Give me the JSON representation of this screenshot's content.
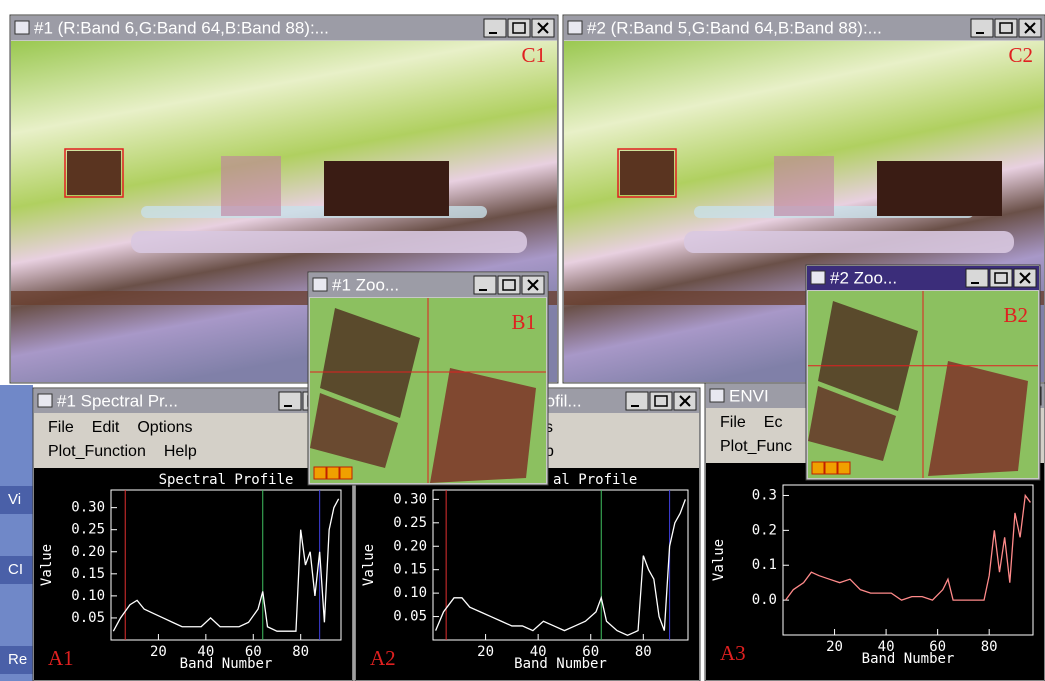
{
  "image_windows": [
    {
      "title": "#1 (R:Band 6,G:Band 64,B:Band 88):...",
      "label": "C1"
    },
    {
      "title": "#2 (R:Band 5,G:Band 64,B:Band 88):...",
      "label": "C2"
    }
  ],
  "zoom_windows": [
    {
      "title": "#1 Zoo...",
      "label": "B1"
    },
    {
      "title": "#2 Zoo...",
      "label": "B2"
    }
  ],
  "left_strip": [
    "Vi",
    "CI",
    "Re"
  ],
  "profiles": [
    {
      "title": "#1 Spectral Pr...",
      "menu_rows": [
        [
          "File",
          "Edit",
          "Options"
        ],
        [
          "Plot_Function",
          "Help"
        ]
      ],
      "plot_title": "Spectral Profile",
      "label": "A1",
      "xlabel": "Band Number",
      "ylabel": "Value",
      "xlim": [
        0,
        97
      ],
      "ylim": [
        0,
        0.34
      ],
      "xticks": [
        20,
        40,
        60,
        80
      ],
      "yticks": [
        {
          "value": 0.05,
          "label": "0.05"
        },
        {
          "value": 0.1,
          "label": "0.10"
        },
        {
          "value": 0.15,
          "label": "0.15"
        },
        {
          "value": 0.2,
          "label": "0.20"
        },
        {
          "value": 0.25,
          "label": "0.25"
        },
        {
          "value": 0.3,
          "label": "0.30"
        }
      ],
      "markers": [
        {
          "band": 6,
          "color": "#e03030"
        },
        {
          "band": 64,
          "color": "#40c060"
        },
        {
          "band": 88,
          "color": "#4040e0"
        }
      ],
      "color": "#ffffff",
      "x": [
        1,
        4,
        8,
        11,
        14,
        18,
        22,
        26,
        30,
        34,
        38,
        42,
        46,
        50,
        54,
        58,
        62,
        64,
        66,
        70,
        74,
        78,
        80,
        82,
        84,
        86,
        88,
        90,
        92,
        94,
        96
      ],
      "values": [
        0.02,
        0.05,
        0.08,
        0.09,
        0.07,
        0.06,
        0.05,
        0.04,
        0.03,
        0.03,
        0.03,
        0.05,
        0.03,
        0.03,
        0.03,
        0.04,
        0.07,
        0.11,
        0.03,
        0.02,
        0.02,
        0.02,
        0.25,
        0.17,
        0.2,
        0.1,
        0.2,
        0.04,
        0.25,
        0.3,
        0.32
      ]
    },
    {
      "title": "rofil...",
      "menu_rows": [
        [
          "s"
        ],
        [
          "p"
        ]
      ],
      "plot_title": "al Profile",
      "label": "A2",
      "xlabel": "Band Number",
      "ylabel": "Value",
      "xlim": [
        0,
        97
      ],
      "ylim": [
        0,
        0.32
      ],
      "xticks": [
        20,
        40,
        60,
        80
      ],
      "yticks": [
        {
          "value": 0.05,
          "label": "0.05"
        },
        {
          "value": 0.1,
          "label": "0.10"
        },
        {
          "value": 0.15,
          "label": "0.15"
        },
        {
          "value": 0.2,
          "label": "0.20"
        },
        {
          "value": 0.25,
          "label": "0.25"
        },
        {
          "value": 0.3,
          "label": "0.30"
        }
      ],
      "markers": [
        {
          "band": 5,
          "color": "#e03030"
        },
        {
          "band": 64,
          "color": "#40c060"
        },
        {
          "band": 90,
          "color": "#4040e0"
        }
      ],
      "color": "#ffffff",
      "x": [
        1,
        4,
        8,
        11,
        14,
        18,
        22,
        26,
        30,
        34,
        38,
        42,
        46,
        50,
        54,
        58,
        62,
        64,
        66,
        70,
        74,
        78,
        80,
        82,
        84,
        86,
        88,
        90,
        92,
        94,
        96
      ],
      "values": [
        0.02,
        0.06,
        0.09,
        0.09,
        0.07,
        0.06,
        0.05,
        0.04,
        0.03,
        0.03,
        0.02,
        0.04,
        0.03,
        0.02,
        0.03,
        0.04,
        0.06,
        0.09,
        0.04,
        0.02,
        0.01,
        0.02,
        0.18,
        0.15,
        0.13,
        0.05,
        0.02,
        0.2,
        0.25,
        0.27,
        0.3
      ]
    },
    {
      "title": "ENVI",
      "menu_rows": [
        [
          "File",
          "Ec"
        ],
        [
          "Plot_Func"
        ]
      ],
      "label": "A3",
      "xlabel": "Band Number",
      "ylabel": "Value",
      "xlim": [
        0,
        97
      ],
      "ylim": [
        -0.1,
        0.33
      ],
      "xticks": [
        20,
        40,
        60,
        80
      ],
      "yticks": [
        {
          "value": 0,
          "label": "0.0"
        },
        {
          "value": 0.1,
          "label": "0.1"
        },
        {
          "value": 0.2,
          "label": "0.2"
        },
        {
          "value": 0.3,
          "label": "0.3"
        }
      ],
      "markers": [],
      "color": "#ff8a8a",
      "x": [
        1,
        4,
        8,
        11,
        14,
        18,
        22,
        26,
        30,
        34,
        38,
        42,
        46,
        50,
        54,
        58,
        62,
        64,
        66,
        70,
        74,
        78,
        80,
        82,
        84,
        86,
        88,
        90,
        92,
        94,
        96
      ],
      "values": [
        0.0,
        0.03,
        0.05,
        0.08,
        0.07,
        0.06,
        0.05,
        0.06,
        0.03,
        0.02,
        0.02,
        0.02,
        0.0,
        0.01,
        0.01,
        0.0,
        0.03,
        0.06,
        0.0,
        0.0,
        0.0,
        0.0,
        0.07,
        0.2,
        0.08,
        0.18,
        0.05,
        0.25,
        0.18,
        0.3,
        0.28
      ]
    }
  ]
}
